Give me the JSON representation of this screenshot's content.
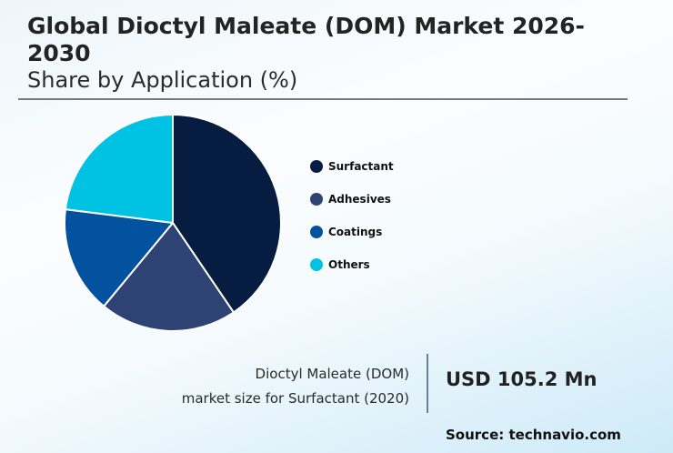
{
  "header": {
    "title": "Global Dioctyl Maleate (DOM) Market 2026-2030",
    "subtitle": "Share by Application (%)"
  },
  "legend": [
    {
      "label": "Surfactant",
      "color": "#071c41"
    },
    {
      "label": "Adhesives",
      "color": "#2e4373"
    },
    {
      "label": "Coatings",
      "color": "#0252a0"
    },
    {
      "label": "Others",
      "color": "#00c2e2"
    }
  ],
  "callout": {
    "caption_line1": "Dioctyl Maleate (DOM)",
    "caption_line2": "market size for Surfactant (2020)",
    "value": "USD 105.2 Mn",
    "source": "Source: technavio.com"
  },
  "chart_data": {
    "type": "pie",
    "title": "Global Dioctyl Maleate (DOM) Market 2026-2030",
    "subtitle": "Share by Application (%)",
    "categories": [
      "Surfactant",
      "Adhesives",
      "Coatings",
      "Others"
    ],
    "values": [
      40.5,
      20.5,
      16.0,
      23.0
    ],
    "colors": [
      "#071c41",
      "#2e4373",
      "#0252a0",
      "#00c2e2"
    ],
    "start_angle_deg": 0,
    "direction": "clockwise",
    "legend_position": "right",
    "data_labels": false
  }
}
